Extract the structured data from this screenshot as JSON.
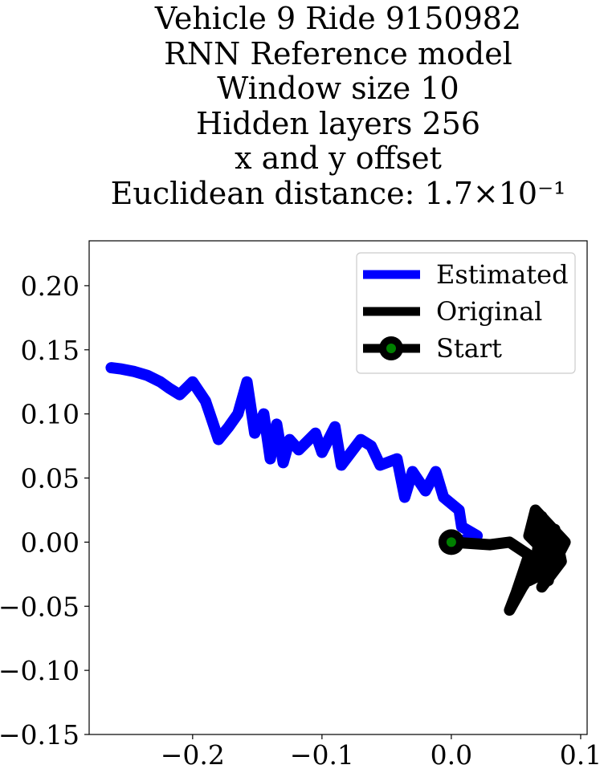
{
  "chart_data": {
    "type": "line",
    "title_lines": [
      "Vehicle 9 Ride 9150982",
      "RNN Reference model",
      "Window size 10",
      "Hidden layers 256",
      "x and y offset",
      "Euclidean distance: 1.7×10⁻¹"
    ],
    "xlim": [
      -0.28,
      0.105
    ],
    "ylim": [
      -0.15,
      0.235
    ],
    "x_ticks": [
      {
        "value": -0.2,
        "label": "−0.2"
      },
      {
        "value": -0.1,
        "label": "−0.1"
      },
      {
        "value": 0.0,
        "label": "0.0"
      },
      {
        "value": 0.1,
        "label": "0.1"
      }
    ],
    "y_ticks": [
      {
        "value": 0.2,
        "label": "0.20"
      },
      {
        "value": 0.15,
        "label": "0.15"
      },
      {
        "value": 0.1,
        "label": "0.10"
      },
      {
        "value": 0.05,
        "label": "0.05"
      },
      {
        "value": 0.0,
        "label": "0.00"
      },
      {
        "value": -0.05,
        "label": "−0.05"
      },
      {
        "value": -0.1,
        "label": "−0.10"
      },
      {
        "value": -0.15,
        "label": "−0.15"
      }
    ],
    "grid": false,
    "legend_position": "top-right",
    "series": [
      {
        "name": "Estimated",
        "color": "#0000ff",
        "points": [
          [
            0.0,
            0.0
          ],
          [
            0.012,
            0.002
          ],
          [
            0.02,
            0.005
          ],
          [
            0.008,
            0.012
          ],
          [
            0.006,
            0.025
          ],
          [
            -0.006,
            0.035
          ],
          [
            -0.012,
            0.055
          ],
          [
            -0.02,
            0.04
          ],
          [
            -0.03,
            0.055
          ],
          [
            -0.036,
            0.035
          ],
          [
            -0.042,
            0.065
          ],
          [
            -0.055,
            0.06
          ],
          [
            -0.062,
            0.075
          ],
          [
            -0.07,
            0.08
          ],
          [
            -0.085,
            0.06
          ],
          [
            -0.09,
            0.09
          ],
          [
            -0.1,
            0.07
          ],
          [
            -0.105,
            0.085
          ],
          [
            -0.118,
            0.072
          ],
          [
            -0.125,
            0.08
          ],
          [
            -0.13,
            0.062
          ],
          [
            -0.135,
            0.092
          ],
          [
            -0.14,
            0.065
          ],
          [
            -0.145,
            0.1
          ],
          [
            -0.152,
            0.085
          ],
          [
            -0.158,
            0.125
          ],
          [
            -0.165,
            0.1
          ],
          [
            -0.172,
            0.09
          ],
          [
            -0.18,
            0.08
          ],
          [
            -0.185,
            0.095
          ],
          [
            -0.19,
            0.11
          ],
          [
            -0.2,
            0.125
          ],
          [
            -0.21,
            0.115
          ],
          [
            -0.218,
            0.12
          ],
          [
            -0.225,
            0.125
          ],
          [
            -0.235,
            0.13
          ],
          [
            -0.245,
            0.133
          ],
          [
            -0.255,
            0.135
          ],
          [
            -0.263,
            0.136
          ]
        ]
      },
      {
        "name": "Original",
        "color": "#000000",
        "points": [
          [
            0.0,
            0.0
          ],
          [
            0.03,
            -0.002
          ],
          [
            0.045,
            0.0
          ],
          [
            0.06,
            -0.01
          ],
          [
            0.05,
            -0.04
          ],
          [
            0.045,
            -0.053
          ],
          [
            0.055,
            -0.035
          ],
          [
            0.065,
            -0.02
          ],
          [
            0.07,
            0.02
          ],
          [
            0.075,
            -0.03
          ],
          [
            0.08,
            0.01
          ],
          [
            0.085,
            -0.015
          ],
          [
            0.07,
            -0.035
          ],
          [
            0.088,
            0.0
          ],
          [
            0.065,
            0.025
          ],
          [
            0.06,
            0.005
          ],
          [
            0.075,
            -0.01
          ],
          [
            0.06,
            -0.03
          ],
          [
            0.08,
            -0.02
          ],
          [
            0.07,
            -0.005
          ]
        ]
      }
    ],
    "start": {
      "name": "Start",
      "x": 0.0,
      "y": 0.0,
      "marker_color": "#008000",
      "edge_color": "#000000"
    }
  }
}
